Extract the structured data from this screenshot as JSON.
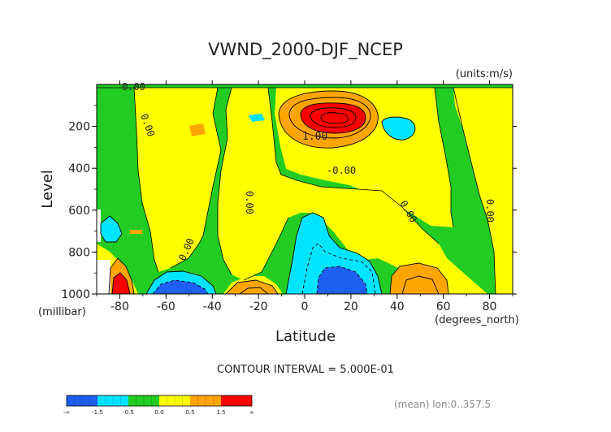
{
  "chart_data": {
    "type": "heatmap",
    "title": "VWND_2000-DJF_NCEP",
    "units_label": "(units:m/s)",
    "xlabel": "Latitude",
    "xunit_label": "(degrees_north)",
    "ylabel": "Level",
    "yunit_label": "(millibar)",
    "x_ticks": [
      "-80",
      "-60",
      "-40",
      "-20",
      "0",
      "20",
      "40",
      "60",
      "80"
    ],
    "x_tick_values": [
      -80,
      -60,
      -40,
      -20,
      0,
      20,
      40,
      60,
      80
    ],
    "y_ticks": [
      "200",
      "400",
      "600",
      "800",
      "1000"
    ],
    "y_tick_values": [
      200,
      400,
      600,
      800,
      1000
    ],
    "xlim": [
      -90,
      90
    ],
    "ylim": [
      0,
      1000
    ],
    "contour_interval_text": "CONTOUR INTERVAL = 5.000E-01",
    "footer_text": "(mean) lon:0..357.5",
    "contour_labels": [
      "0.00",
      "0.00",
      "1.00",
      "-0.00",
      "0.00",
      "0.00",
      "0.00",
      "0.00"
    ],
    "colorbar": {
      "labels": [
        "-∞",
        "-1.5",
        "-0.5",
        "0.0",
        "0.5",
        "1.5",
        "∞"
      ],
      "colors": [
        "#1e5ef0",
        "#00e5ff",
        "#22cc22",
        "#ffff00",
        "#ffa500",
        "#ff0000"
      ]
    },
    "fill_colors": {
      "below_minus_1": "#1e5ef0",
      "minus_1_to_0": "#00e5ff",
      "zero_band": "#22cc22",
      "zero_to_0_5": "#ffff00",
      "0_5_to_1_5": "#ffa500",
      "above_1_5": "#ff0000"
    }
  }
}
